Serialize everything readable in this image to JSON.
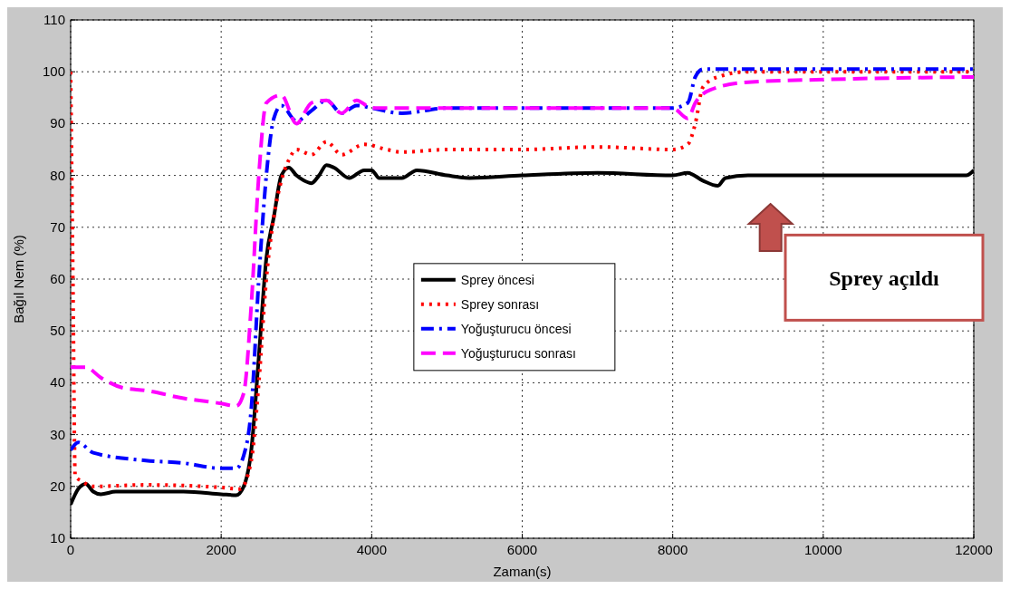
{
  "chart_data": {
    "type": "line",
    "xlabel": "Zaman(s)",
    "ylabel": "Bağıl Nem (%)",
    "xlim": [
      0,
      12000
    ],
    "xticks": [
      0,
      2000,
      4000,
      6000,
      8000,
      10000,
      12000
    ],
    "ylim": [
      10,
      110
    ],
    "yticks": [
      10,
      20,
      30,
      40,
      50,
      60,
      70,
      80,
      90,
      100,
      110
    ],
    "grid": true,
    "legend": "center",
    "annotations": [
      "Sprey açıldı"
    ],
    "series": [
      {
        "name": "Sprey öncesi",
        "color": "#000000",
        "line_style": "solid",
        "x": [
          0,
          100,
          200,
          300,
          400,
          600,
          1000,
          1500,
          2000,
          2200,
          2300,
          2400,
          2500,
          2600,
          2700,
          2800,
          2900,
          3000,
          3100,
          3200,
          3300,
          3400,
          3500,
          3700,
          3900,
          4000,
          4100,
          4400,
          4600,
          5000,
          5300,
          6000,
          7000,
          8000,
          8200,
          8400,
          8600,
          8700,
          9000,
          10000,
          11000,
          11900,
          12000
        ],
        "values": [
          16.5,
          19.5,
          20.5,
          19,
          18.5,
          19,
          19,
          19,
          18.5,
          18.3,
          20,
          27,
          45,
          64,
          72,
          80,
          81.5,
          80,
          79,
          78.5,
          80,
          82,
          81.5,
          79.5,
          81,
          81,
          79.5,
          79.5,
          81,
          80,
          79.5,
          80,
          80.5,
          80,
          80.5,
          79,
          78,
          79.5,
          80,
          80,
          80,
          80,
          81
        ]
      },
      {
        "name": "Sprey sonrası",
        "color": "#ff0000",
        "line_style": "dotted",
        "x": [
          0,
          30,
          60,
          150,
          300,
          1000,
          2000,
          2250,
          2400,
          2500,
          2600,
          2700,
          2800,
          2900,
          3000,
          3200,
          3400,
          3600,
          3900,
          4200,
          4400,
          5000,
          6000,
          7000,
          8000,
          8200,
          8300,
          8400,
          8600,
          9000,
          12000
        ],
        "values": [
          100,
          60,
          22,
          21,
          20,
          20.3,
          19.8,
          19.5,
          25,
          40,
          60,
          72,
          79,
          83,
          85,
          84,
          86.5,
          84,
          86,
          85,
          84.5,
          85,
          85,
          85.5,
          85,
          86,
          90,
          97,
          99,
          100,
          100
        ]
      },
      {
        "name": "Yoğuşturucu öncesi",
        "color": "#0000ff",
        "line_style": "dashdot",
        "x": [
          0,
          100,
          300,
          1000,
          1500,
          2000,
          2200,
          2300,
          2400,
          2500,
          2600,
          2700,
          2800,
          3000,
          3200,
          3400,
          3600,
          3800,
          4000,
          4400,
          5000,
          6000,
          7000,
          8000,
          8200,
          8300,
          8400,
          12000
        ],
        "values": [
          27,
          28.5,
          26.5,
          25,
          24.5,
          23.5,
          23.5,
          26,
          35,
          60,
          80,
          91,
          93.5,
          90.5,
          92.5,
          94.5,
          92,
          93.5,
          93,
          92,
          93,
          93,
          93,
          93,
          94,
          99,
          100.5,
          100.5
        ]
      },
      {
        "name": "Yoğuşturucu sonrası",
        "color": "#ff00ff",
        "line_style": "dashed",
        "x": [
          0,
          200,
          400,
          700,
          1000,
          1500,
          2000,
          2200,
          2300,
          2400,
          2500,
          2600,
          2800,
          3000,
          3200,
          3400,
          3600,
          3800,
          4000,
          4400,
          5000,
          6000,
          7000,
          8000,
          8200,
          8300,
          8500,
          9000,
          10000,
          12000
        ],
        "values": [
          43,
          43,
          41,
          39,
          38.5,
          37,
          36,
          35.5,
          38,
          55,
          80,
          94,
          95.5,
          90,
          94,
          94.5,
          92,
          94.5,
          93,
          93,
          93,
          93,
          93,
          93,
          91,
          94,
          96.5,
          98,
          98.5,
          99
        ]
      }
    ]
  }
}
